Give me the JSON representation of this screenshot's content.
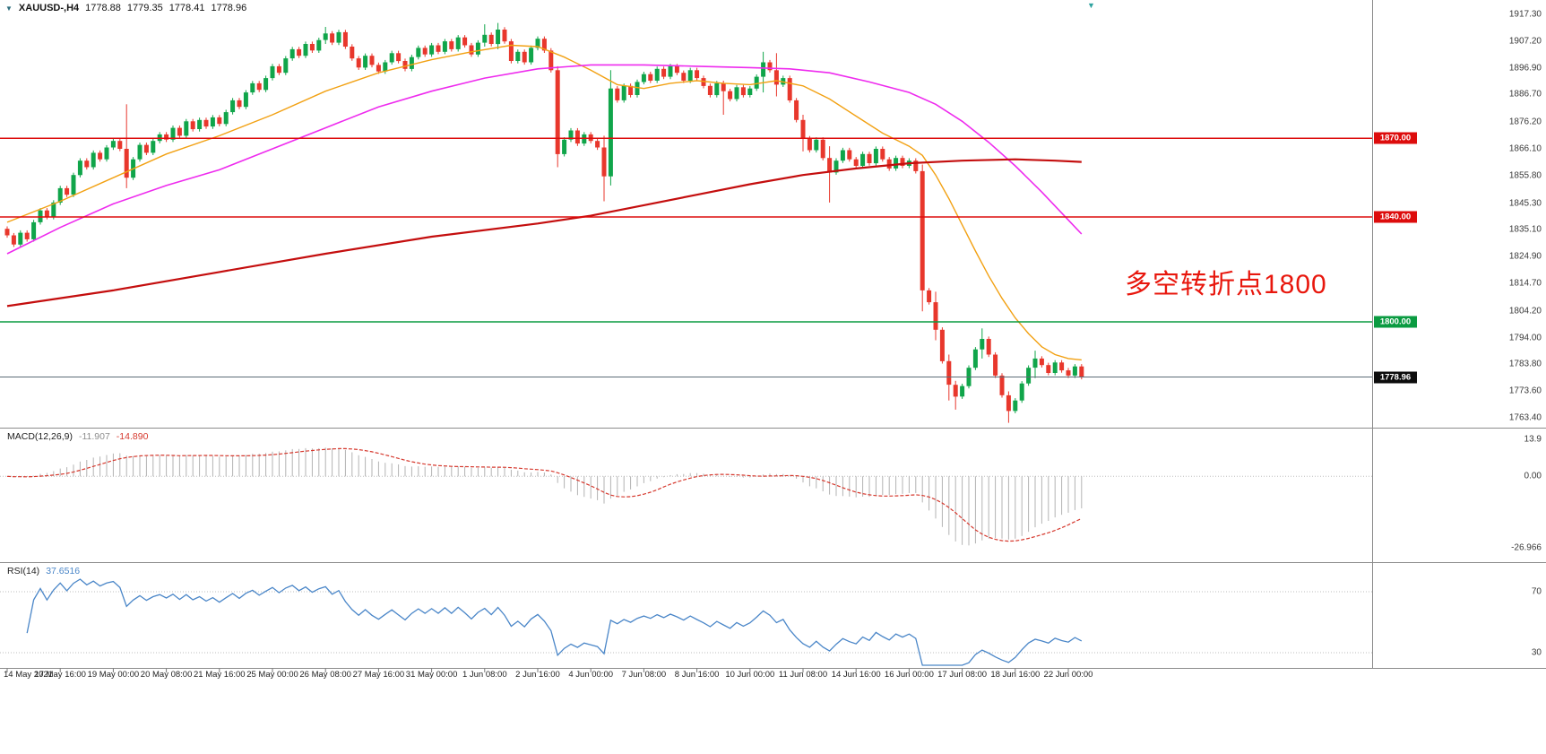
{
  "icons": {
    "collapse": "▼",
    "chart_shift": "▼"
  },
  "header": {
    "symbol": "XAUUSD-,H4",
    "open": "1778.88",
    "high": "1779.35",
    "low": "1778.41",
    "close": "1778.96"
  },
  "annotation": {
    "text": "多空转折点1800",
    "color": "#e8170d"
  },
  "chart_data": {
    "type": "candlestick",
    "symbol": "XAUUSD-",
    "timeframe": "H4",
    "x_labels": [
      "14 May 2021",
      "17 May 16:00",
      "19 May 00:00",
      "20 May 08:00",
      "21 May 16:00",
      "25 May 00:00",
      "26 May 08:00",
      "27 May 16:00",
      "31 May 00:00",
      "1 Jun 08:00",
      "2 Jun 16:00",
      "4 Jun 00:00",
      "7 Jun 08:00",
      "8 Jun 16:00",
      "10 Jun 00:00",
      "11 Jun 08:00",
      "14 Jun 16:00",
      "16 Jun 00:00",
      "17 Jun 08:00",
      "18 Jun 16:00",
      "22 Jun 00:00"
    ],
    "x_label_step": 8,
    "price_axis_labels": [
      "1917.30",
      "1907.20",
      "1896.90",
      "1886.70",
      "1876.20",
      "1866.10",
      "1855.80",
      "1845.30",
      "1835.10",
      "1824.90",
      "1814.70",
      "1804.20",
      "1794.00",
      "1783.80",
      "1773.60",
      "1763.40"
    ],
    "price_range": {
      "max": 1917.3,
      "min": 1763.4
    },
    "up_color": "#10a54a",
    "down_color": "#e8372c",
    "first_open": 1835.5,
    "default_wick": 0.9,
    "closes": [
      1833,
      1829.5,
      1834,
      1831.5,
      1838,
      1842.5,
      1840,
      1845.5,
      1851,
      1848.5,
      1856,
      1861.5,
      1859,
      1864.5,
      1862,
      1866.5,
      1869,
      1866,
      1855,
      1862,
      1867.5,
      1864.5,
      1869,
      1871.5,
      1869.5,
      1874,
      1871,
      1876.5,
      1873.5,
      1877,
      1874.5,
      1878,
      1875.5,
      1880,
      1884.5,
      1882,
      1887.5,
      1891,
      1888.5,
      1893,
      1897.5,
      1895,
      1900.5,
      1904,
      1901.5,
      1906,
      1903.5,
      1907.5,
      1910,
      1906.5,
      1910.5,
      1905,
      1900.5,
      1897,
      1901.5,
      1898,
      1895.5,
      1899,
      1902.5,
      1899.5,
      1896.5,
      1901,
      1904.5,
      1902,
      1905.5,
      1903,
      1907,
      1904,
      1908.5,
      1905.5,
      1902,
      1906.5,
      1909.5,
      1906,
      1911.5,
      1907,
      1899.5,
      1903,
      1899,
      1904.5,
      1908,
      1903.5,
      1896,
      1864,
      1869.5,
      1873,
      1868,
      1871.5,
      1869,
      1866.5,
      1855.5,
      1889,
      1884.5,
      1890,
      1886.5,
      1891.5,
      1894.5,
      1892,
      1896.5,
      1893.5,
      1897.5,
      1895,
      1892,
      1896,
      1893,
      1890,
      1886.5,
      1891,
      1888,
      1885,
      1889.5,
      1886.5,
      1889,
      1893.5,
      1899,
      1896,
      1890.5,
      1893,
      1884.5,
      1877,
      1870,
      1865.5,
      1869.5,
      1862.5,
      1857,
      1861.5,
      1865.5,
      1862,
      1859.5,
      1864,
      1860.5,
      1866,
      1862,
      1858.5,
      1862.5,
      1859.5,
      1861.5,
      1857.5,
      1812,
      1807.5,
      1797,
      1785,
      1776,
      1771.5,
      1775.5,
      1782.5,
      1789.5,
      1793.5,
      1787.5,
      1779.5,
      1772,
      1766,
      1770,
      1776.5,
      1782.5,
      1786,
      1783.5,
      1780.5,
      1784.5,
      1781.5,
      1779.5,
      1783,
      1778.96
    ],
    "wick_overrides": {
      "18": [
        1883,
        1851
      ],
      "48": [
        1912.5,
        1906
      ],
      "72": [
        1913.5,
        1905
      ],
      "74": [
        1914,
        1904
      ],
      "83": [
        1897.5,
        1859
      ],
      "90": [
        1871,
        1846
      ],
      "91": [
        1896,
        1852
      ],
      "108": [
        1892,
        1879
      ],
      "114": [
        1903,
        1887.5
      ],
      "116": [
        1902.5,
        1886
      ],
      "120": [
        1879,
        1865
      ],
      "124": [
        1867,
        1845.5
      ],
      "138": [
        1860,
        1804
      ],
      "140": [
        1811.5,
        1793
      ],
      "142": [
        1787.5,
        1770
      ],
      "143": [
        1777.5,
        1766.5
      ],
      "147": [
        1797.5,
        1786
      ],
      "151": [
        1773.5,
        1761.5
      ],
      "155": [
        1789,
        1778.5
      ]
    },
    "horizontal_lines": [
      {
        "value": 1870.0,
        "label": "1870.00",
        "color": "#dd0c0c"
      },
      {
        "value": 1840.0,
        "label": "1840.00",
        "color": "#dd0c0c"
      },
      {
        "value": 1800.0,
        "label": "1800.00",
        "color": "#0a9b41"
      }
    ],
    "current_price": {
      "value": 1778.96,
      "label": "1778.96",
      "line_color": "#5c6b78",
      "tag_color": "#0d0d0d"
    },
    "moving_averages": [
      {
        "name": "ma-fast-orange",
        "color": "#f2a113",
        "width": 1.4,
        "points": [
          [
            0,
            1838
          ],
          [
            8,
            1846
          ],
          [
            16,
            1855
          ],
          [
            24,
            1864
          ],
          [
            32,
            1871
          ],
          [
            40,
            1879
          ],
          [
            48,
            1888
          ],
          [
            56,
            1895
          ],
          [
            64,
            1900
          ],
          [
            70,
            1903
          ],
          [
            76,
            1905.5
          ],
          [
            80,
            1905
          ],
          [
            84,
            1901
          ],
          [
            88,
            1896
          ],
          [
            92,
            1890.5
          ],
          [
            96,
            1889
          ],
          [
            100,
            1891
          ],
          [
            104,
            1892
          ],
          [
            108,
            1891
          ],
          [
            112,
            1890.5
          ],
          [
            116,
            1892
          ],
          [
            120,
            1890
          ],
          [
            124,
            1885
          ],
          [
            128,
            1878.5
          ],
          [
            132,
            1872
          ],
          [
            136,
            1867
          ],
          [
            138,
            1863.5
          ],
          [
            140,
            1856
          ],
          [
            142,
            1847
          ],
          [
            144,
            1837
          ],
          [
            146,
            1827
          ],
          [
            148,
            1817.5
          ],
          [
            150,
            1809
          ],
          [
            152,
            1801.5
          ],
          [
            154,
            1795.5
          ],
          [
            156,
            1790.5
          ],
          [
            158,
            1787.5
          ],
          [
            160,
            1786
          ],
          [
            162,
            1785.5
          ]
        ]
      },
      {
        "name": "ma-mid-magenta",
        "color": "#ee2bee",
        "width": 1.6,
        "points": [
          [
            0,
            1826
          ],
          [
            8,
            1836
          ],
          [
            16,
            1845
          ],
          [
            24,
            1852
          ],
          [
            32,
            1858
          ],
          [
            40,
            1866
          ],
          [
            48,
            1874
          ],
          [
            56,
            1882
          ],
          [
            64,
            1888
          ],
          [
            72,
            1893
          ],
          [
            80,
            1896.5
          ],
          [
            88,
            1898
          ],
          [
            96,
            1898
          ],
          [
            104,
            1897.5
          ],
          [
            112,
            1897
          ],
          [
            118,
            1896.5
          ],
          [
            124,
            1895
          ],
          [
            130,
            1891.5
          ],
          [
            136,
            1887.5
          ],
          [
            140,
            1883
          ],
          [
            144,
            1876.5
          ],
          [
            148,
            1868.5
          ],
          [
            152,
            1859.5
          ],
          [
            156,
            1849.5
          ],
          [
            159,
            1841.5
          ],
          [
            162,
            1833.5
          ]
        ]
      },
      {
        "name": "ma-slow-red",
        "color": "#c40e0e",
        "width": 2.2,
        "points": [
          [
            0,
            1806
          ],
          [
            16,
            1812
          ],
          [
            32,
            1819
          ],
          [
            48,
            1826
          ],
          [
            64,
            1832.5
          ],
          [
            80,
            1837.5
          ],
          [
            88,
            1840.5
          ],
          [
            96,
            1844.5
          ],
          [
            104,
            1848.5
          ],
          [
            112,
            1852.5
          ],
          [
            120,
            1856
          ],
          [
            128,
            1858.5
          ],
          [
            136,
            1860.5
          ],
          [
            144,
            1861.5
          ],
          [
            152,
            1862
          ],
          [
            158,
            1861.5
          ],
          [
            162,
            1861
          ]
        ]
      }
    ],
    "macd": {
      "title": "MACD(12,26,9)",
      "value_main": "-11.907",
      "value_signal": "-14.890",
      "fast": 12,
      "slow": 26,
      "signal": 9,
      "range": [
        -30,
        15
      ],
      "axis": [
        {
          "text": "13.9",
          "value": 13.9
        },
        {
          "text": "0.00",
          "value": 0
        },
        {
          "text": "-26.966",
          "value": -26.966
        }
      ],
      "hist_color": "#b3b3b3",
      "signal_color": "#d6392e"
    },
    "rsi": {
      "title": "RSI(14)",
      "value": "37.6516",
      "period": 14,
      "levels": [
        {
          "text": "70",
          "value": 70
        },
        {
          "text": "30",
          "value": 30
        }
      ],
      "line_color": "#4a86c8"
    }
  }
}
